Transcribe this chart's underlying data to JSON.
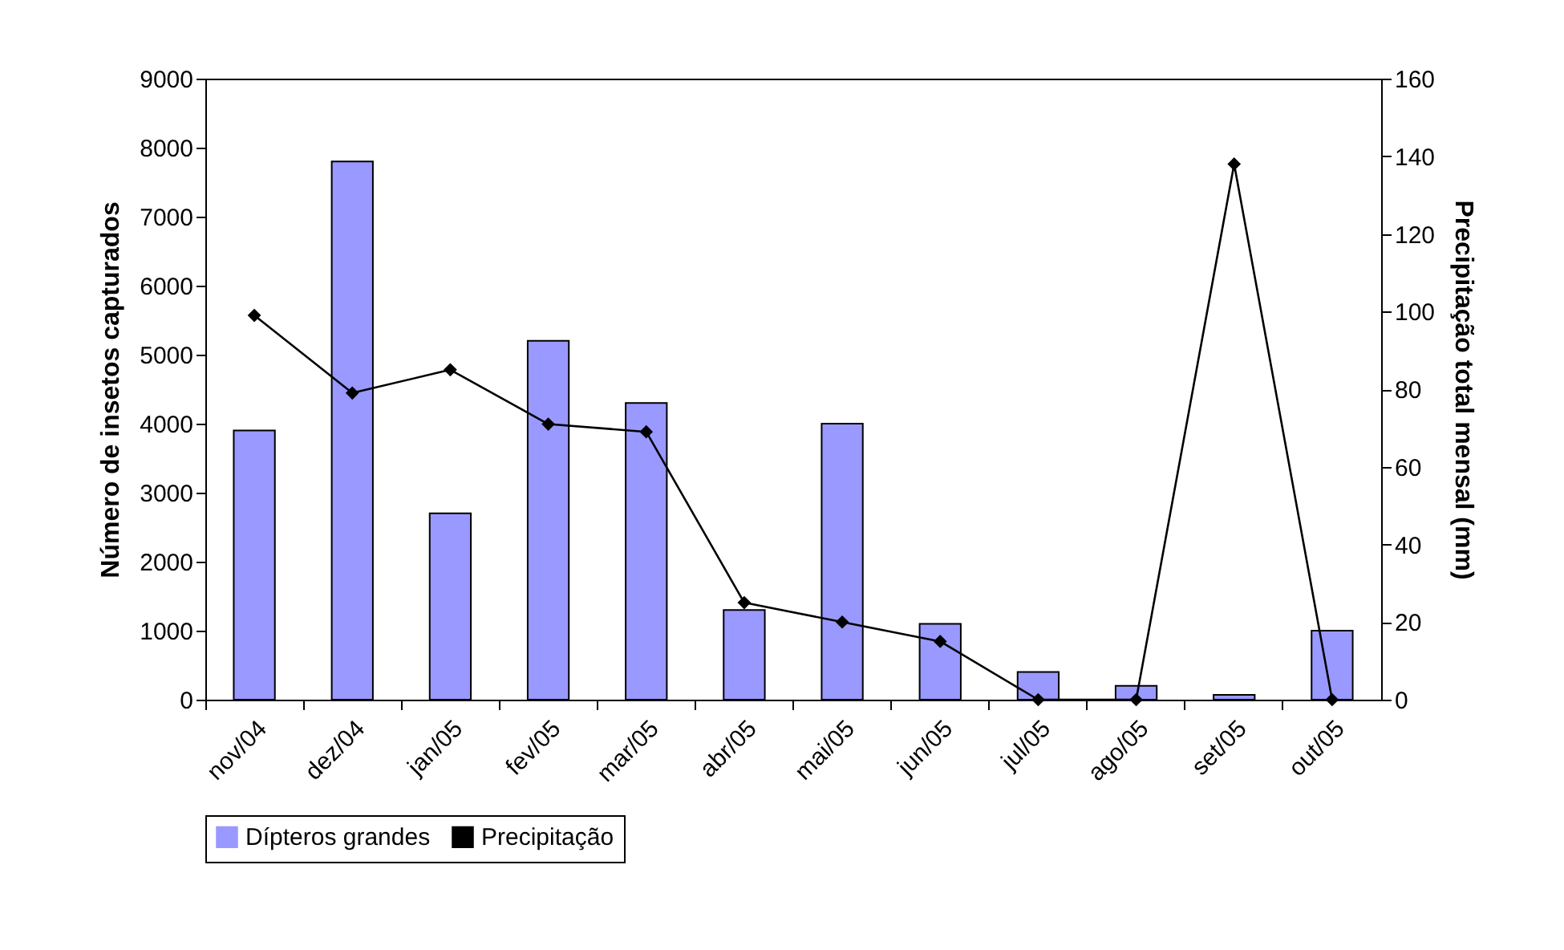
{
  "chart_data": {
    "type": "bar",
    "categories": [
      "nov/04",
      "dez/04",
      "jan/05",
      "fev/05",
      "mar/05",
      "abr/05",
      "mai/05",
      "jun/05",
      "jul/05",
      "ago/05",
      "set/05",
      "out/05"
    ],
    "ylabel": "Número de insetos capturados",
    "y2label": "Precipitação total mensal (mm)",
    "ylim": [
      0,
      9000
    ],
    "yticks": [
      0,
      1000,
      2000,
      3000,
      4000,
      5000,
      6000,
      7000,
      8000,
      9000
    ],
    "y2lim": [
      0,
      160
    ],
    "y2ticks": [
      0,
      20,
      40,
      60,
      80,
      100,
      120,
      140,
      160
    ],
    "series": [
      {
        "name": "Dípteros grandes",
        "color": "#9999ff",
        "values": [
          3900,
          7800,
          2700,
          5200,
          4300,
          1300,
          4000,
          1100,
          400,
          200,
          70,
          1000
        ]
      },
      {
        "name": "Precipitação",
        "type": "line",
        "axis": "y2",
        "color": "#000000",
        "marker": "diamond",
        "values": [
          99,
          79,
          85,
          71,
          69,
          25,
          20,
          15,
          0,
          0,
          138,
          0
        ]
      }
    ],
    "legend": "bottom",
    "grid": false
  }
}
